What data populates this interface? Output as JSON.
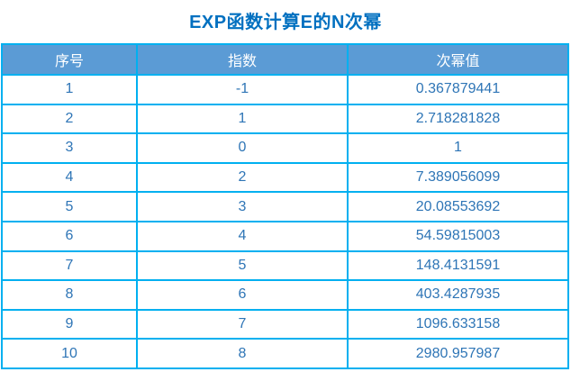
{
  "title": "EXP函数计算E的N次幂",
  "colors": {
    "title_text": "#0070c0",
    "header_bg": "#5b9bd5",
    "header_text": "#ffffff",
    "border": "#00b0f0",
    "cell_text": "#2e75b6",
    "page_bg": "#ffffff"
  },
  "table": {
    "headers": [
      "序号",
      "指数",
      "次幂值"
    ],
    "rows": [
      [
        "1",
        "-1",
        "0.367879441"
      ],
      [
        "2",
        "1",
        "2.718281828"
      ],
      [
        "3",
        "0",
        "1"
      ],
      [
        "4",
        "2",
        "7.389056099"
      ],
      [
        "5",
        "3",
        "20.08553692"
      ],
      [
        "6",
        "4",
        "54.59815003"
      ],
      [
        "7",
        "5",
        "148.4131591"
      ],
      [
        "8",
        "6",
        "403.4287935"
      ],
      [
        "9",
        "7",
        "1096.633158"
      ],
      [
        "10",
        "8",
        "2980.957987"
      ]
    ]
  },
  "chart_data": {
    "type": "table",
    "title": "EXP函数计算E的N次幂",
    "columns": [
      "序号",
      "指数",
      "次幂值"
    ],
    "rows": [
      [
        1,
        -1,
        0.367879441
      ],
      [
        2,
        1,
        2.718281828
      ],
      [
        3,
        0,
        1
      ],
      [
        4,
        2,
        7.389056099
      ],
      [
        5,
        3,
        20.08553692
      ],
      [
        6,
        4,
        54.59815003
      ],
      [
        7,
        5,
        148.4131591
      ],
      [
        8,
        6,
        403.4287935
      ],
      [
        9,
        7,
        1096.633158
      ],
      [
        10,
        8,
        2980.957987
      ]
    ]
  }
}
